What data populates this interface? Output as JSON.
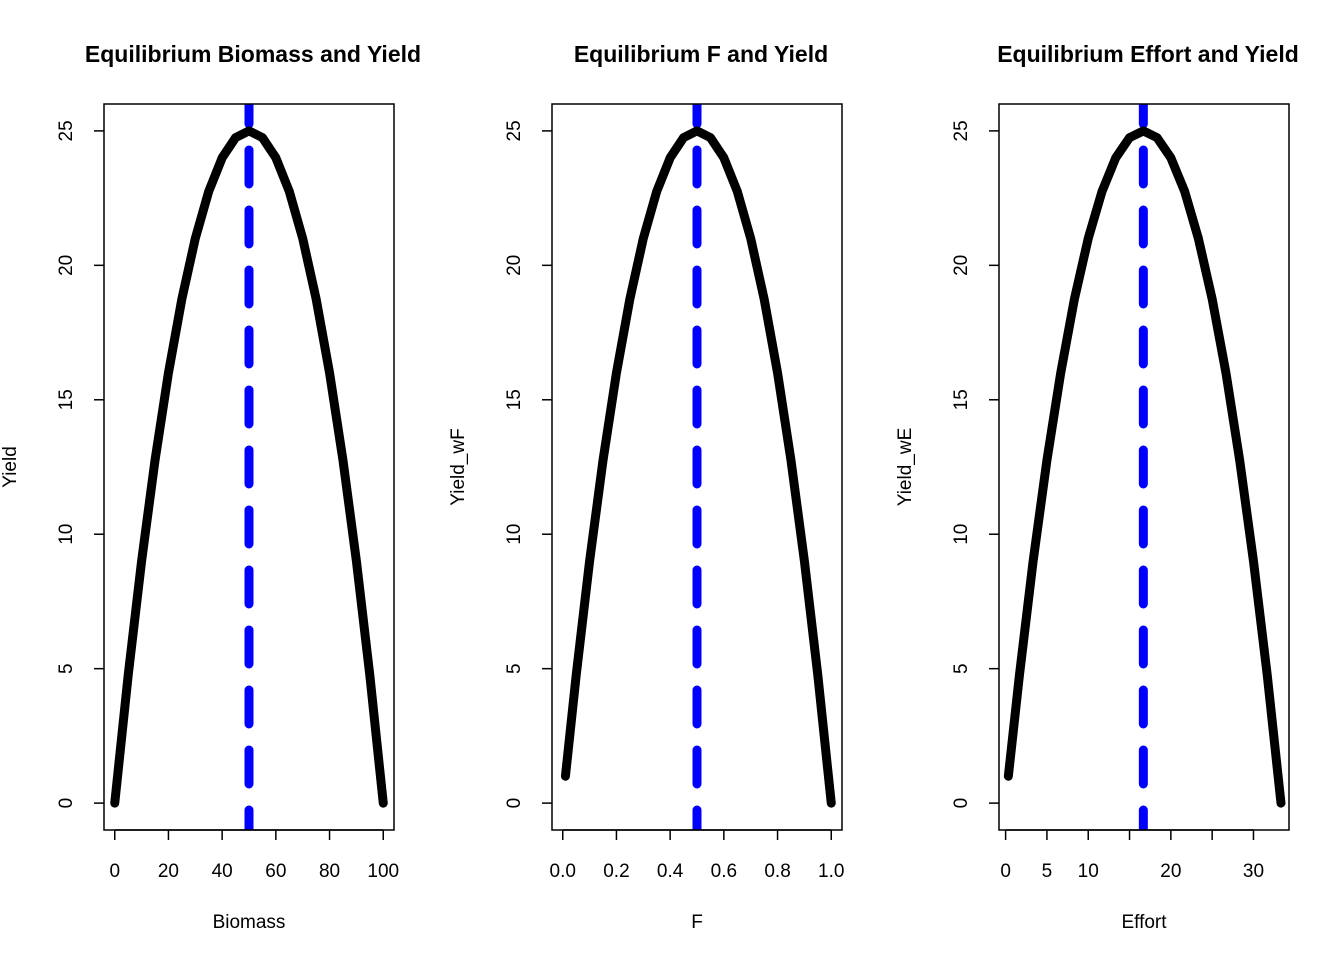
{
  "figure": {
    "background": "#ffffff"
  },
  "colors": {
    "curve": "#000000",
    "reference_line": "#0000ff",
    "axes": "#000000"
  },
  "chart_data": [
    {
      "type": "line",
      "title": "Equilibrium Biomass and Yield",
      "xlabel": "Biomass",
      "ylabel": "Yield",
      "xlim": [
        -4,
        104
      ],
      "ylim": [
        -1,
        26
      ],
      "xticks": [
        0,
        20,
        40,
        60,
        80,
        100
      ],
      "xtick_labels": [
        "0",
        "20",
        "40",
        "60",
        "80",
        "100"
      ],
      "yticks": [
        0,
        5,
        10,
        15,
        20,
        25
      ],
      "ytick_labels": [
        "0",
        "5",
        "10",
        "15",
        "20",
        "25"
      ],
      "series": [
        {
          "x": [
            0,
            5,
            10,
            15,
            20,
            25,
            30,
            35,
            40,
            45,
            50,
            55,
            60,
            65,
            70,
            75,
            80,
            85,
            90,
            95,
            100
          ],
          "values": [
            0,
            4.75,
            9,
            12.75,
            16,
            18.75,
            21,
            22.75,
            24,
            24.75,
            25,
            24.75,
            24,
            22.75,
            21,
            18.75,
            16,
            12.75,
            9,
            4.75,
            0
          ]
        }
      ],
      "vline": {
        "x": 50,
        "style": "dashed"
      }
    },
    {
      "type": "line",
      "title": "Equilibrium F and Yield",
      "xlabel": "F",
      "ylabel": "Yield_wF",
      "xlim": [
        -0.04,
        1.04
      ],
      "ylim": [
        -1,
        26
      ],
      "xticks": [
        0,
        0.2,
        0.4,
        0.6,
        0.8,
        1.0
      ],
      "xtick_labels": [
        "0.0",
        "0.2",
        "0.4",
        "0.6",
        "0.8",
        "1.0"
      ],
      "yticks": [
        0,
        5,
        10,
        15,
        20,
        25
      ],
      "ytick_labels": [
        "0",
        "5",
        "10",
        "15",
        "20",
        "25"
      ],
      "series": [
        {
          "x": [
            0.01,
            0.05,
            0.1,
            0.15,
            0.2,
            0.25,
            0.3,
            0.35,
            0.4,
            0.45,
            0.5,
            0.55,
            0.6,
            0.65,
            0.7,
            0.75,
            0.8,
            0.85,
            0.9,
            0.95,
            1.0
          ],
          "values": [
            1,
            4.75,
            9,
            12.75,
            16,
            18.75,
            21,
            22.75,
            24,
            24.75,
            25,
            24.75,
            24,
            22.75,
            21,
            18.75,
            16,
            12.75,
            9,
            4.75,
            0
          ]
        }
      ],
      "vline": {
        "x": 0.5,
        "style": "dashed"
      }
    },
    {
      "type": "line",
      "title": "Equilibrium Effort and Yield",
      "xlabel": "Effort",
      "ylabel": "Yield_wE",
      "xlim": [
        -0.8,
        34.3
      ],
      "ylim": [
        -1,
        26
      ],
      "xticks": [
        0,
        5,
        10,
        15,
        20,
        25,
        30
      ],
      "xtick_labels": [
        "0",
        "5",
        "10",
        "",
        "20",
        "",
        "30"
      ],
      "yticks": [
        0,
        5,
        10,
        15,
        20,
        25
      ],
      "ytick_labels": [
        "0",
        "5",
        "10",
        "15",
        "20",
        "25"
      ],
      "series": [
        {
          "x": [
            0.33,
            1.67,
            3.33,
            5,
            6.67,
            8.33,
            10,
            11.67,
            13.33,
            15,
            16.67,
            18.33,
            20,
            21.67,
            23.33,
            25,
            26.67,
            28.33,
            30,
            31.67,
            33.33
          ],
          "values": [
            1,
            4.75,
            9,
            12.75,
            16,
            18.75,
            21,
            22.75,
            24,
            24.75,
            25,
            24.75,
            24,
            22.75,
            21,
            18.75,
            16,
            12.75,
            9,
            4.75,
            0
          ]
        }
      ],
      "vline": {
        "x": 16.67,
        "style": "dashed"
      }
    }
  ]
}
